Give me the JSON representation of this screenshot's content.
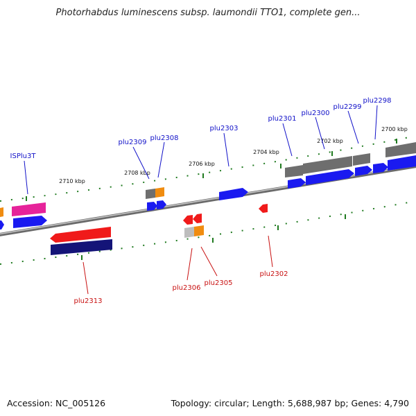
{
  "title": "Photorhabdus luminescens subsp. laumondii TTO1, complete gen...",
  "footer": {
    "accession": "Accession: NC_005126",
    "summary": "Topology: circular; Length: 5,688,987 bp; Genes: 4,790"
  },
  "colors": {
    "blue_gene": "#1a1af0",
    "gray_gene": "#6e6e6e",
    "orange_gene": "#f08c10",
    "red_gene": "#f01a1a",
    "magenta_gene": "#e6239a",
    "navy_gene": "#141478",
    "light_gray_gene": "#bdbdbd",
    "tick": "#1f7a1f",
    "top_label": "#1010c8",
    "bottom_label": "#c81010",
    "backbone": "#8a8a8a"
  },
  "scale_labels": [
    "2700 kbp",
    "2702 kbp",
    "2704 kbp",
    "2706 kbp",
    "2708 kbp",
    "2710 kbp"
  ],
  "top_labels": [
    "ISPlu3T",
    "plu2309",
    "plu2308",
    "plu2303",
    "plu2301",
    "plu2300",
    "plu2299",
    "plu2298"
  ],
  "bottom_labels": [
    "plu2313",
    "plu2306",
    "plu2305",
    "plu2302"
  ]
}
